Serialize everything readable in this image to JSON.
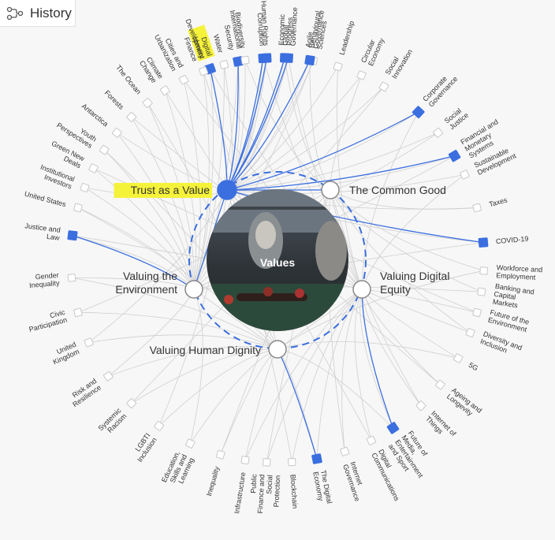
{
  "toolbar": {
    "history_label": "History",
    "history_icon": "history-graph-icon"
  },
  "center": {
    "label": "Values",
    "image_description_icon": "photo-thumbnail"
  },
  "colors": {
    "accent": "#3b6fe0",
    "highlight": "#f5f23a",
    "edge": "#cfcfcf",
    "node_fill": "#ffffff"
  },
  "hubs": [
    {
      "id": "trust",
      "label": "Trust as a Value",
      "selected": true,
      "highlighted": true
    },
    {
      "id": "common",
      "label": "The Common Good",
      "selected": false,
      "highlighted": false
    },
    {
      "id": "environment",
      "label_lines": [
        "Valuing the",
        "Environment"
      ],
      "selected": false,
      "highlighted": false
    },
    {
      "id": "digital",
      "label_lines": [
        "Valuing Digital",
        "Equity"
      ],
      "selected": false,
      "highlighted": false
    },
    {
      "id": "dignity",
      "label": "Valuing Human Dignity",
      "selected": false,
      "highlighted": false
    }
  ],
  "topics": [
    {
      "label": "Digital Identity",
      "connected": true,
      "highlighted": true
    },
    {
      "label": "International Security",
      "connected": true
    },
    {
      "label": "Corruption",
      "connected": true
    },
    {
      "label": "Economic Progress",
      "connected": true
    },
    {
      "label": "Behavioural Sciences",
      "connected": false
    },
    {
      "label": "Leadership",
      "connected": false
    },
    {
      "label": "Circular Economy",
      "connected": false
    },
    {
      "label": "Social Innovation",
      "connected": false
    },
    {
      "label": "Corporate Governance",
      "connected": true
    },
    {
      "label": "Social Justice",
      "connected": false
    },
    {
      "label": "Financial and Monetary Systems",
      "connected": true
    },
    {
      "label": "Sustainable Development",
      "connected": false
    },
    {
      "label": "Taxes",
      "connected": false
    },
    {
      "label": "COVID-19",
      "connected": true
    },
    {
      "label": "Workforce and Employment",
      "connected": false
    },
    {
      "label": "Banking and Capital Markets",
      "connected": false
    },
    {
      "label": "Future of the Environment",
      "connected": false
    },
    {
      "label": "Diversity and Inclusion",
      "connected": false
    },
    {
      "label": "5G",
      "connected": false
    },
    {
      "label": "Ageing and Longevity",
      "connected": false
    },
    {
      "label": "Internet of Things",
      "connected": false
    },
    {
      "label": "Future of Media, Entertainment and Sport",
      "connected": true
    },
    {
      "label": "Digital Communications",
      "connected": false
    },
    {
      "label": "Internet Governance",
      "connected": false
    },
    {
      "label": "The Digital Economy",
      "connected": true
    },
    {
      "label": "Blockchain",
      "connected": false
    },
    {
      "label": "Public Finance and Social Protection",
      "connected": false
    },
    {
      "label": "Infrastructure",
      "connected": false
    },
    {
      "label": "Inequality",
      "connected": false
    },
    {
      "label": "Education, Skills and Learning",
      "connected": false
    },
    {
      "label": "LGBTI Inclusion",
      "connected": false
    },
    {
      "label": "Systemic Racism",
      "connected": false
    },
    {
      "label": "Risk and Resilience",
      "connected": false
    },
    {
      "label": "United Kingdom",
      "connected": false
    },
    {
      "label": "Civic Participation",
      "connected": false
    },
    {
      "label": "Gender Inequality",
      "connected": false
    },
    {
      "label": "Justice and Law",
      "connected": true
    },
    {
      "label": "United States",
      "connected": false
    },
    {
      "label": "Institutional Investors",
      "connected": false
    },
    {
      "label": "Green New Deals",
      "connected": false
    },
    {
      "label": "Youth Perspectives",
      "connected": false
    },
    {
      "label": "Antarctica",
      "connected": false
    },
    {
      "label": "Forests",
      "connected": false
    },
    {
      "label": "The Ocean",
      "connected": false
    },
    {
      "label": "Climate Change",
      "connected": false
    },
    {
      "label": "Cities and Urbanization",
      "connected": false
    },
    {
      "label": "Development Finance",
      "connected": false
    },
    {
      "label": "Water",
      "connected": false
    },
    {
      "label": "Biodiversity",
      "connected": false
    },
    {
      "label": "Human Rights",
      "connected": true
    },
    {
      "label": "Global Governance",
      "connected": true
    },
    {
      "label": "Agile Governance",
      "connected": true
    }
  ]
}
